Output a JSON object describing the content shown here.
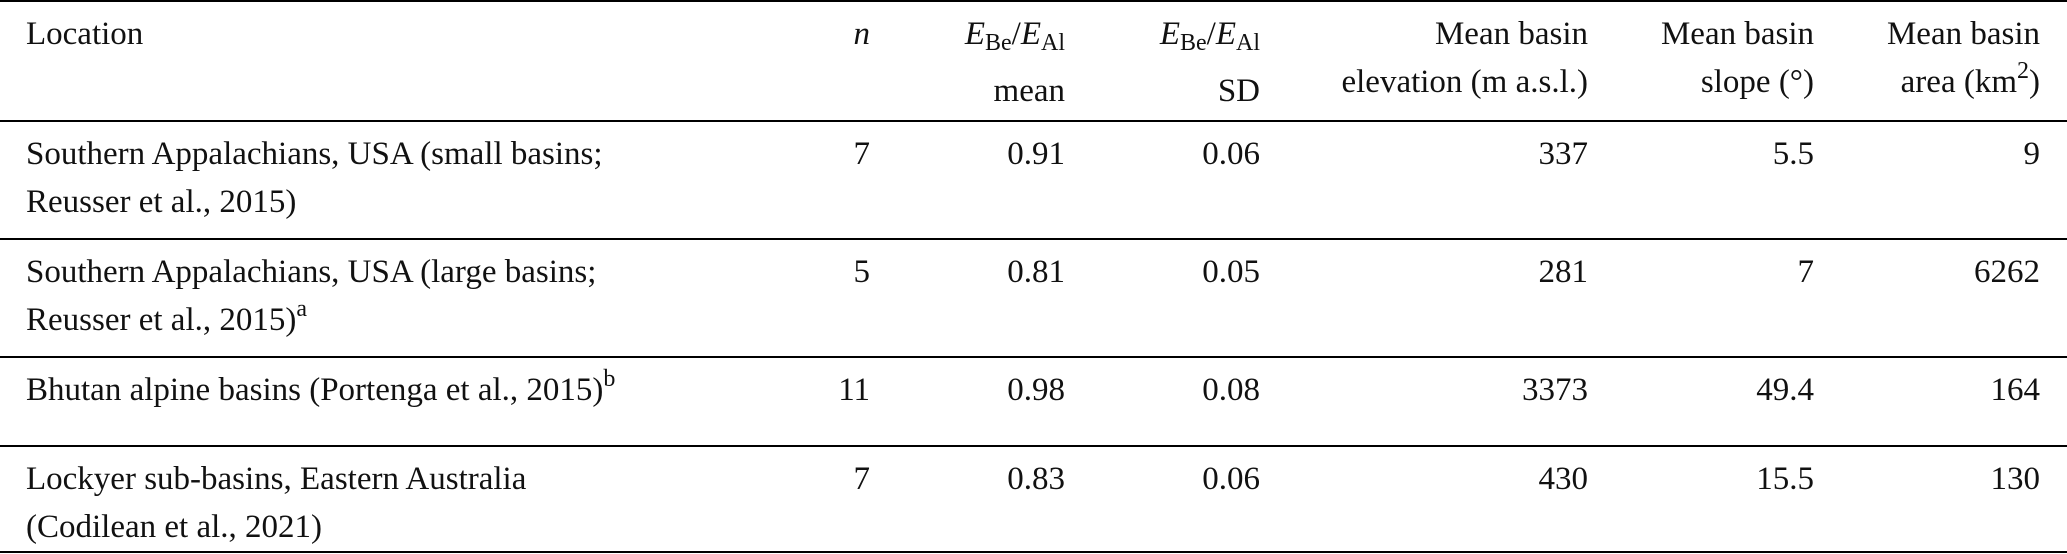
{
  "header": {
    "location": "Location",
    "n": "n",
    "ratio_mean": {
      "num": "E",
      "num_sub": "Be",
      "sep": "/",
      "den": "E",
      "den_sub": "Al",
      "stat": "mean"
    },
    "ratio_sd": {
      "num": "E",
      "num_sub": "Be",
      "sep": "/",
      "den": "E",
      "den_sub": "Al",
      "stat": "SD"
    },
    "elevation": [
      "Mean basin",
      "elevation (m a.s.l.)"
    ],
    "slope": [
      "Mean basin",
      "slope (°)"
    ],
    "area": {
      "line1": "Mean basin",
      "line2": "area (km",
      "sup": "2",
      "close": ")"
    }
  },
  "rows": [
    {
      "location": [
        "Southern Appalachians, USA (small basins;",
        "Reusser et al., 2015)"
      ],
      "n": 7,
      "mean": 0.91,
      "sd": 0.06,
      "elevation": 337,
      "slope": 5.5,
      "area": 9
    },
    {
      "location": [
        "Southern Appalachians, USA (large basins;",
        "Reusser et al., 2015)"
      ],
      "footnote": "a",
      "n": 5,
      "mean": 0.81,
      "sd": 0.05,
      "elevation": 281,
      "slope": 7,
      "area": 6262
    },
    {
      "location": [
        "Bhutan alpine basins (Portenga et al., 2015)"
      ],
      "footnote": "b",
      "n": 11,
      "mean": 0.98,
      "sd": 0.08,
      "elevation": 3373,
      "slope": 49.4,
      "area": 164
    },
    {
      "location": [
        "Lockyer sub-basins, Eastern Australia",
        "(Codilean et al., 2021)"
      ],
      "n": 7,
      "mean": 0.83,
      "sd": 0.06,
      "elevation": 430,
      "slope": 15.5,
      "area": 130
    }
  ]
}
